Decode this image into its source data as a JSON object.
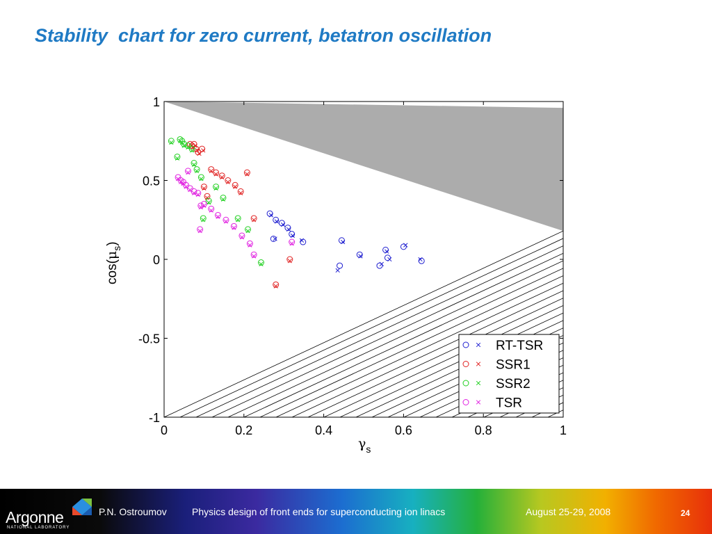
{
  "slide": {
    "title": "Stability  chart for zero current, betatron oscillation"
  },
  "footer": {
    "author": "P.N. Ostroumov",
    "talk_title": "Physics design of front ends for superconducting ion linacs",
    "date": "August 25-29, 2008",
    "page": "24",
    "logo_text": "Argonne",
    "logo_subtext": "NATIONAL LABORATORY"
  },
  "chart_data": {
    "type": "scatter",
    "xlim": [
      0,
      1
    ],
    "ylim": [
      -1,
      1
    ],
    "xticks": [
      "0",
      "0.2",
      "0.4",
      "0.6",
      "0.8",
      "1"
    ],
    "yticks": [
      "1",
      "0.5",
      "0",
      "-0.5",
      "-1"
    ],
    "xtick_values": [
      0,
      0.2,
      0.4,
      0.6,
      0.8,
      1
    ],
    "ytick_values": [
      1,
      0.5,
      0,
      -0.5,
      -1
    ],
    "xlabel_symbol": "γ",
    "xlabel_sub": "s",
    "ylabel_prefix": "cos(",
    "ylabel_symbol": "μ",
    "ylabel_sub": "s",
    "ylabel_suffix": ")",
    "grid": false,
    "legend_position": "bottom-right",
    "regions": {
      "gray_region": [
        [
          0,
          1
        ],
        [
          1,
          0.96
        ],
        [
          1,
          0.18
        ]
      ],
      "hatched_region": [
        [
          0,
          -1
        ],
        [
          1,
          0.18
        ],
        [
          1,
          -1
        ]
      ],
      "gray_color": "#acacac"
    },
    "series": [
      {
        "name": "RT-TSR",
        "color": "#2020d0",
        "circles": [
          [
            0.265,
            0.29
          ],
          [
            0.274,
            0.13
          ],
          [
            0.28,
            0.25
          ],
          [
            0.295,
            0.23
          ],
          [
            0.31,
            0.2
          ],
          [
            0.32,
            0.16
          ],
          [
            0.348,
            0.11
          ],
          [
            0.44,
            -0.04
          ],
          [
            0.445,
            0.12
          ],
          [
            0.49,
            0.03
          ],
          [
            0.54,
            -0.04
          ],
          [
            0.555,
            0.06
          ],
          [
            0.56,
            0.01
          ],
          [
            0.6,
            0.08
          ],
          [
            0.645,
            -0.01
          ]
        ],
        "crosses": [
          [
            0.268,
            0.28
          ],
          [
            0.278,
            0.13
          ],
          [
            0.282,
            0.24
          ],
          [
            0.298,
            0.22
          ],
          [
            0.312,
            0.19
          ],
          [
            0.322,
            0.15
          ],
          [
            0.345,
            0.12
          ],
          [
            0.435,
            -0.07
          ],
          [
            0.448,
            0.11
          ],
          [
            0.492,
            0.02
          ],
          [
            0.545,
            -0.03
          ],
          [
            0.558,
            0.05
          ],
          [
            0.565,
            0.0
          ],
          [
            0.605,
            0.09
          ],
          [
            0.642,
            0.0
          ]
        ]
      },
      {
        "name": "SSR1",
        "color": "#e02020",
        "circles": [
          [
            0.065,
            0.73
          ],
          [
            0.07,
            0.72
          ],
          [
            0.075,
            0.73
          ],
          [
            0.08,
            0.7
          ],
          [
            0.085,
            0.68
          ],
          [
            0.095,
            0.7
          ],
          [
            0.1,
            0.46
          ],
          [
            0.108,
            0.4
          ],
          [
            0.118,
            0.57
          ],
          [
            0.13,
            0.55
          ],
          [
            0.145,
            0.53
          ],
          [
            0.16,
            0.5
          ],
          [
            0.178,
            0.47
          ],
          [
            0.192,
            0.43
          ],
          [
            0.208,
            0.55
          ],
          [
            0.225,
            0.26
          ],
          [
            0.28,
            -0.16
          ],
          [
            0.315,
            0.0
          ]
        ],
        "crosses": [
          [
            0.068,
            0.72
          ],
          [
            0.072,
            0.71
          ],
          [
            0.078,
            0.72
          ],
          [
            0.083,
            0.69
          ],
          [
            0.088,
            0.67
          ],
          [
            0.098,
            0.69
          ],
          [
            0.1,
            0.45
          ],
          [
            0.108,
            0.39
          ],
          [
            0.118,
            0.56
          ],
          [
            0.13,
            0.54
          ],
          [
            0.145,
            0.52
          ],
          [
            0.16,
            0.49
          ],
          [
            0.178,
            0.46
          ],
          [
            0.192,
            0.42
          ],
          [
            0.208,
            0.54
          ],
          [
            0.225,
            0.25
          ],
          [
            0.28,
            -0.17
          ],
          [
            0.315,
            -0.01
          ]
        ]
      },
      {
        "name": "SSR2",
        "color": "#20d020",
        "circles": [
          [
            0.018,
            0.75
          ],
          [
            0.033,
            0.65
          ],
          [
            0.04,
            0.76
          ],
          [
            0.045,
            0.75
          ],
          [
            0.05,
            0.73
          ],
          [
            0.06,
            0.72
          ],
          [
            0.07,
            0.7
          ],
          [
            0.075,
            0.61
          ],
          [
            0.082,
            0.57
          ],
          [
            0.093,
            0.52
          ],
          [
            0.098,
            0.26
          ],
          [
            0.112,
            0.37
          ],
          [
            0.13,
            0.46
          ],
          [
            0.148,
            0.39
          ],
          [
            0.185,
            0.26
          ],
          [
            0.21,
            0.19
          ],
          [
            0.243,
            -0.02
          ]
        ],
        "crosses": [
          [
            0.018,
            0.74
          ],
          [
            0.033,
            0.64
          ],
          [
            0.04,
            0.75
          ],
          [
            0.045,
            0.74
          ],
          [
            0.05,
            0.72
          ],
          [
            0.06,
            0.71
          ],
          [
            0.07,
            0.69
          ],
          [
            0.075,
            0.6
          ],
          [
            0.082,
            0.56
          ],
          [
            0.093,
            0.51
          ],
          [
            0.098,
            0.25
          ],
          [
            0.112,
            0.36
          ],
          [
            0.13,
            0.45
          ],
          [
            0.148,
            0.38
          ],
          [
            0.185,
            0.25
          ],
          [
            0.21,
            0.18
          ],
          [
            0.243,
            -0.03
          ]
        ]
      },
      {
        "name": "TSR",
        "color": "#e020e0",
        "circles": [
          [
            0.035,
            0.52
          ],
          [
            0.042,
            0.5
          ],
          [
            0.048,
            0.49
          ],
          [
            0.055,
            0.47
          ],
          [
            0.06,
            0.56
          ],
          [
            0.065,
            0.45
          ],
          [
            0.075,
            0.43
          ],
          [
            0.085,
            0.42
          ],
          [
            0.09,
            0.19
          ],
          [
            0.092,
            0.34
          ],
          [
            0.1,
            0.35
          ],
          [
            0.118,
            0.32
          ],
          [
            0.135,
            0.28
          ],
          [
            0.155,
            0.25
          ],
          [
            0.175,
            0.21
          ],
          [
            0.195,
            0.15
          ],
          [
            0.215,
            0.1
          ],
          [
            0.225,
            0.03
          ],
          [
            0.32,
            0.11
          ]
        ],
        "crosses": [
          [
            0.035,
            0.51
          ],
          [
            0.042,
            0.49
          ],
          [
            0.048,
            0.48
          ],
          [
            0.055,
            0.46
          ],
          [
            0.06,
            0.55
          ],
          [
            0.065,
            0.44
          ],
          [
            0.075,
            0.42
          ],
          [
            0.085,
            0.41
          ],
          [
            0.09,
            0.18
          ],
          [
            0.092,
            0.33
          ],
          [
            0.1,
            0.34
          ],
          [
            0.118,
            0.31
          ],
          [
            0.135,
            0.27
          ],
          [
            0.155,
            0.24
          ],
          [
            0.175,
            0.2
          ],
          [
            0.195,
            0.14
          ],
          [
            0.215,
            0.09
          ],
          [
            0.225,
            0.02
          ],
          [
            0.32,
            0.1
          ]
        ]
      }
    ]
  }
}
